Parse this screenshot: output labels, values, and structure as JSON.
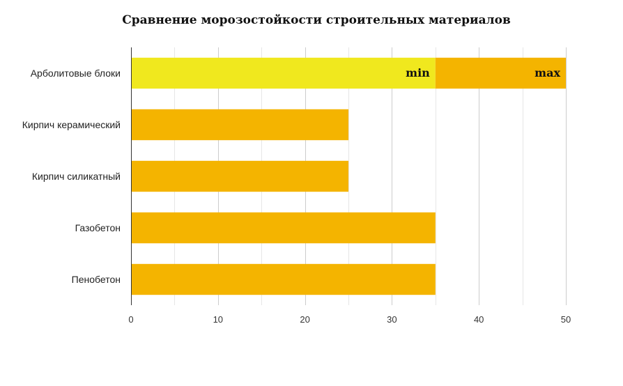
{
  "chart_data": {
    "type": "bar",
    "orientation": "horizontal",
    "stacked": true,
    "title": "Сравнение морозостойкости строительных материалов",
    "categories": [
      "Арболитовые блоки",
      "Кирпич керамический",
      "Кирпич силикатный",
      "Газобетон",
      "Пенобетон"
    ],
    "series": [
      {
        "name": "min",
        "color": "#f0e81e",
        "values": [
          35,
          0,
          0,
          0,
          0
        ]
      },
      {
        "color": "#f4b400",
        "values": [
          15,
          25,
          25,
          35,
          35
        ]
      }
    ],
    "annotations": [
      {
        "category": "Арболитовые блоки",
        "series_index": 0,
        "text": "min"
      },
      {
        "category": "Арболитовые блоки",
        "series_index": 1,
        "text": "max"
      }
    ],
    "xlim": [
      0,
      50
    ],
    "xticks": [
      0,
      10,
      20,
      30,
      40,
      50
    ],
    "minor_gridlines": true,
    "grid": true,
    "legend": "none"
  }
}
